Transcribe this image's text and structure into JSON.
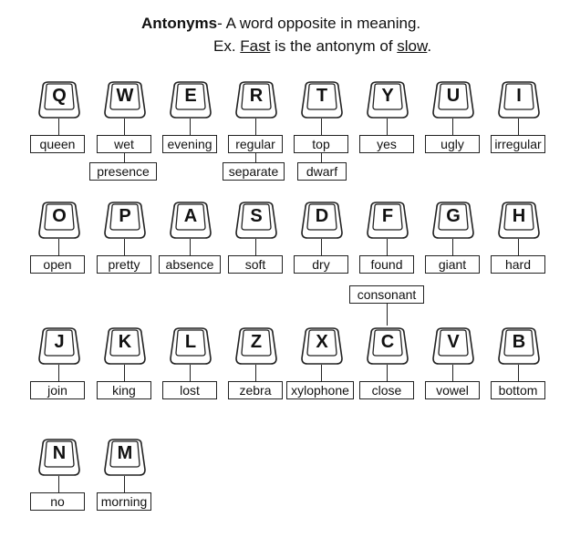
{
  "header": {
    "term": "Antonyms",
    "definition": "- A word opposite in meaning.",
    "example_prefix": "Ex. ",
    "example_word": "Fast",
    "example_middle": " is the antonym of ",
    "example_antonym": "slow",
    "example_end": "."
  },
  "keys": [
    {
      "letter": "Q",
      "labels": [
        "queen"
      ]
    },
    {
      "letter": "W",
      "labels": [
        "wet",
        "presence"
      ]
    },
    {
      "letter": "E",
      "labels": [
        "evening"
      ]
    },
    {
      "letter": "R",
      "labels": [
        "regular",
        "separate"
      ]
    },
    {
      "letter": "T",
      "labels": [
        "top",
        "dwarf"
      ]
    },
    {
      "letter": "Y",
      "labels": [
        "yes"
      ]
    },
    {
      "letter": "U",
      "labels": [
        "ugly"
      ]
    },
    {
      "letter": "I",
      "labels": [
        "irregular"
      ]
    },
    {
      "letter": "O",
      "labels": [
        "open"
      ]
    },
    {
      "letter": "P",
      "labels": [
        "pretty"
      ]
    },
    {
      "letter": "A",
      "labels": [
        "absence"
      ]
    },
    {
      "letter": "S",
      "labels": [
        "soft"
      ]
    },
    {
      "letter": "D",
      "labels": [
        "dry"
      ]
    },
    {
      "letter": "F",
      "labels": [
        "found",
        "consonant"
      ]
    },
    {
      "letter": "G",
      "labels": [
        "giant"
      ]
    },
    {
      "letter": "H",
      "labels": [
        "hard"
      ]
    },
    {
      "letter": "J",
      "labels": [
        "join"
      ]
    },
    {
      "letter": "K",
      "labels": [
        "king"
      ]
    },
    {
      "letter": "L",
      "labels": [
        "lost"
      ]
    },
    {
      "letter": "Z",
      "labels": [
        "zebra"
      ]
    },
    {
      "letter": "X",
      "labels": [
        "xylophone"
      ]
    },
    {
      "letter": "C",
      "labels": [
        "close"
      ]
    },
    {
      "letter": "V",
      "labels": [
        "vowel"
      ]
    },
    {
      "letter": "B",
      "labels": [
        "bottom"
      ]
    },
    {
      "letter": "N",
      "labels": [
        "no"
      ]
    },
    {
      "letter": "M",
      "labels": [
        "morning"
      ]
    }
  ]
}
